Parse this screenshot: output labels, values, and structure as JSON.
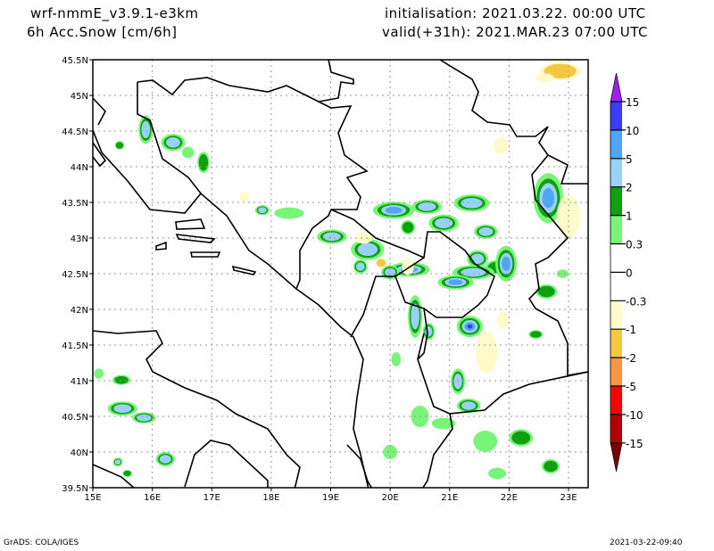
{
  "header": {
    "model": "wrf-nmmE_v3.9.1-e3km",
    "field": "6h Acc.Snow [cm/6h]",
    "init": "initialisation: 2021.03.22.  00:00 UTC",
    "valid": "valid(+31h): 2021.MAR.23 07:00 UTC"
  },
  "footer": {
    "credit": "GrADS: COLA/IGES",
    "timestamp": "2021-03-22-09:40"
  },
  "map": {
    "lon_range": [
      15,
      23.33
    ],
    "lat_range": [
      39.5,
      45.5
    ],
    "lat_ticks": [
      {
        "v": 45.5,
        "label": "45.5N"
      },
      {
        "v": 45,
        "label": "45N"
      },
      {
        "v": 44.5,
        "label": "44.5N"
      },
      {
        "v": 44,
        "label": "44N"
      },
      {
        "v": 43.5,
        "label": "43.5N"
      },
      {
        "v": 43,
        "label": "43N"
      },
      {
        "v": 42.5,
        "label": "42.5N"
      },
      {
        "v": 42,
        "label": "42N"
      },
      {
        "v": 41.5,
        "label": "41.5N"
      },
      {
        "v": 41,
        "label": "41N"
      },
      {
        "v": 40.5,
        "label": "40.5N"
      },
      {
        "v": 40,
        "label": "40N"
      },
      {
        "v": 39.5,
        "label": "39.5N"
      }
    ],
    "lon_ticks": [
      {
        "v": 15,
        "label": "15E"
      },
      {
        "v": 16,
        "label": "16E"
      },
      {
        "v": 17,
        "label": "17E"
      },
      {
        "v": 18,
        "label": "18E"
      },
      {
        "v": 19,
        "label": "19E"
      },
      {
        "v": 20,
        "label": "20E"
      },
      {
        "v": 21,
        "label": "21E"
      },
      {
        "v": 22,
        "label": "22E"
      },
      {
        "v": 23,
        "label": "23E"
      }
    ],
    "snow_cells": [
      {
        "lon": 15.89,
        "lat": 44.52,
        "v": 3,
        "dlon": 0.12,
        "dlat": 0.2
      },
      {
        "lon": 15.45,
        "lat": 44.3,
        "v": 1,
        "dlon": 0.08,
        "dlat": 0.06
      },
      {
        "lon": 16.35,
        "lat": 44.34,
        "v": 3,
        "dlon": 0.2,
        "dlat": 0.12
      },
      {
        "lon": 16.86,
        "lat": 44.06,
        "v": 1.5,
        "dlon": 0.1,
        "dlat": 0.15
      },
      {
        "lon": 16.6,
        "lat": 44.2,
        "v": 0.5,
        "dlon": 0.1,
        "dlat": 0.08
      },
      {
        "lon": 17.85,
        "lat": 43.39,
        "v": 3,
        "dlon": 0.12,
        "dlat": 0.07
      },
      {
        "lon": 18.3,
        "lat": 43.35,
        "v": 0.5,
        "dlon": 0.25,
        "dlat": 0.08
      },
      {
        "lon": 19.02,
        "lat": 43.02,
        "v": 3,
        "dlon": 0.25,
        "dlat": 0.1
      },
      {
        "lon": 19.62,
        "lat": 42.84,
        "v": 4,
        "dlon": 0.28,
        "dlat": 0.15
      },
      {
        "lon": 19.5,
        "lat": 42.6,
        "v": 3,
        "dlon": 0.12,
        "dlat": 0.1
      },
      {
        "lon": 20.06,
        "lat": 43.39,
        "v": 6,
        "dlon": 0.35,
        "dlat": 0.12
      },
      {
        "lon": 20.3,
        "lat": 43.15,
        "v": 1.5,
        "dlon": 0.12,
        "dlat": 0.1
      },
      {
        "lon": 20.62,
        "lat": 43.44,
        "v": 4,
        "dlon": 0.25,
        "dlat": 0.1
      },
      {
        "lon": 21.37,
        "lat": 43.49,
        "v": 4,
        "dlon": 0.3,
        "dlat": 0.12
      },
      {
        "lon": 20.9,
        "lat": 43.21,
        "v": 4,
        "dlon": 0.25,
        "dlat": 0.12
      },
      {
        "lon": 21.61,
        "lat": 43.09,
        "v": 3,
        "dlon": 0.2,
        "dlat": 0.1
      },
      {
        "lon": 21.47,
        "lat": 42.71,
        "v": 3,
        "dlon": 0.18,
        "dlat": 0.12
      },
      {
        "lon": 21.8,
        "lat": 42.59,
        "v": 1.5,
        "dlon": 0.2,
        "dlat": 0.1
      },
      {
        "lon": 21.95,
        "lat": 42.64,
        "v": 6,
        "dlon": 0.18,
        "dlat": 0.25
      },
      {
        "lon": 21.4,
        "lat": 42.52,
        "v": 4,
        "dlon": 0.35,
        "dlat": 0.1
      },
      {
        "lon": 20.32,
        "lat": 42.56,
        "v": 6,
        "dlon": 0.35,
        "dlat": 0.1
      },
      {
        "lon": 20.0,
        "lat": 42.52,
        "v": 3,
        "dlon": 0.15,
        "dlat": 0.1
      },
      {
        "lon": 20.42,
        "lat": 41.9,
        "v": 4,
        "dlon": 0.12,
        "dlat": 0.3
      },
      {
        "lon": 20.65,
        "lat": 41.69,
        "v": 3,
        "dlon": 0.1,
        "dlat": 0.12
      },
      {
        "lon": 21.1,
        "lat": 42.38,
        "v": 6,
        "dlon": 0.3,
        "dlat": 0.1
      },
      {
        "lon": 21.34,
        "lat": 41.76,
        "v": 12,
        "dlon": 0.22,
        "dlat": 0.15
      },
      {
        "lon": 22.66,
        "lat": 43.56,
        "v": 6,
        "dlon": 0.25,
        "dlat": 0.35
      },
      {
        "lon": 22.63,
        "lat": 42.25,
        "v": 1.5,
        "dlon": 0.18,
        "dlat": 0.1
      },
      {
        "lon": 22.45,
        "lat": 41.65,
        "v": 1.5,
        "dlon": 0.12,
        "dlat": 0.06
      },
      {
        "lon": 21.14,
        "lat": 40.99,
        "v": 4,
        "dlon": 0.12,
        "dlat": 0.18
      },
      {
        "lon": 21.32,
        "lat": 40.65,
        "v": 4,
        "dlon": 0.2,
        "dlat": 0.1
      },
      {
        "lon": 15.48,
        "lat": 41.01,
        "v": 1.5,
        "dlon": 0.15,
        "dlat": 0.07
      },
      {
        "lon": 15.5,
        "lat": 40.61,
        "v": 3,
        "dlon": 0.25,
        "dlat": 0.1
      },
      {
        "lon": 15.86,
        "lat": 40.48,
        "v": 3,
        "dlon": 0.2,
        "dlat": 0.08
      },
      {
        "lon": 16.22,
        "lat": 39.9,
        "v": 3,
        "dlon": 0.16,
        "dlat": 0.1
      },
      {
        "lon": 15.42,
        "lat": 39.86,
        "v": 3,
        "dlon": 0.08,
        "dlat": 0.06
      },
      {
        "lon": 15.58,
        "lat": 39.7,
        "v": 1.5,
        "dlon": 0.08,
        "dlat": 0.05
      },
      {
        "lon": 15.1,
        "lat": 41.1,
        "v": 0.5,
        "dlon": 0.08,
        "dlat": 0.07
      },
      {
        "lon": 20.1,
        "lat": 41.3,
        "v": 0.5,
        "dlon": 0.08,
        "dlat": 0.1
      },
      {
        "lon": 20.5,
        "lat": 40.5,
        "v": 0.5,
        "dlon": 0.15,
        "dlat": 0.15
      },
      {
        "lon": 20.9,
        "lat": 40.4,
        "v": 0.8,
        "dlon": 0.2,
        "dlat": 0.08
      },
      {
        "lon": 21.6,
        "lat": 40.15,
        "v": 0.8,
        "dlon": 0.2,
        "dlat": 0.15
      },
      {
        "lon": 22.2,
        "lat": 40.2,
        "v": 1.5,
        "dlon": 0.2,
        "dlat": 0.12
      },
      {
        "lon": 22.7,
        "lat": 39.8,
        "v": 1.5,
        "dlon": 0.15,
        "dlat": 0.1
      },
      {
        "lon": 21.8,
        "lat": 39.7,
        "v": 0.6,
        "dlon": 0.15,
        "dlat": 0.08
      },
      {
        "lon": 20.0,
        "lat": 40.0,
        "v": 0.6,
        "dlon": 0.12,
        "dlat": 0.1
      },
      {
        "lon": 22.9,
        "lat": 42.5,
        "v": 0.6,
        "dlon": 0.1,
        "dlat": 0.06
      },
      {
        "lon": 22.86,
        "lat": 45.34,
        "v": -1.5,
        "dlon": 0.35,
        "dlat": 0.13
      },
      {
        "lon": 22.6,
        "lat": 45.25,
        "v": -0.5,
        "dlon": 0.15,
        "dlat": 0.06
      },
      {
        "lon": 21.86,
        "lat": 44.3,
        "v": -0.5,
        "dlon": 0.12,
        "dlat": 0.12
      },
      {
        "lon": 17.55,
        "lat": 43.58,
        "v": -0.5,
        "dlon": 0.08,
        "dlat": 0.07
      },
      {
        "lon": 19.85,
        "lat": 42.65,
        "v": -1.5,
        "dlon": 0.1,
        "dlat": 0.07
      },
      {
        "lon": 19.55,
        "lat": 43.0,
        "v": -0.5,
        "dlon": 0.15,
        "dlat": 0.08
      },
      {
        "lon": 20.3,
        "lat": 42.6,
        "v": -0.5,
        "dlon": 0.1,
        "dlat": 0.12
      },
      {
        "lon": 21.62,
        "lat": 41.4,
        "v": -0.5,
        "dlon": 0.18,
        "dlat": 0.3
      },
      {
        "lon": 21.9,
        "lat": 41.85,
        "v": -0.5,
        "dlon": 0.1,
        "dlat": 0.12
      },
      {
        "lon": 23.0,
        "lat": 43.3,
        "v": -0.5,
        "dlon": 0.2,
        "dlat": 0.3
      }
    ]
  },
  "colorbar": {
    "top_arrow_color": "#a020f0",
    "bottom_arrow_color": "#780000",
    "segments": [
      {
        "from": 15,
        "to": 10,
        "color": "#3c3cff"
      },
      {
        "from": 10,
        "to": 5,
        "color": "#50a5f5"
      },
      {
        "from": 5,
        "to": 2,
        "color": "#96d2fa"
      },
      {
        "from": 2,
        "to": 1,
        "color": "#0fa00f"
      },
      {
        "from": 1,
        "to": 0.3,
        "color": "#78f578"
      },
      {
        "from": 0.3,
        "to": 0,
        "color": "#ffffff"
      },
      {
        "from": 0,
        "to": -0.3,
        "color": "#ffffff"
      },
      {
        "from": -0.3,
        "to": -1,
        "color": "#fffac8"
      },
      {
        "from": -1,
        "to": -2,
        "color": "#f5c841"
      },
      {
        "from": -2,
        "to": -5,
        "color": "#fa9641"
      },
      {
        "from": -5,
        "to": -10,
        "color": "#ff0000"
      },
      {
        "from": -10,
        "to": -15,
        "color": "#b40000"
      }
    ],
    "labels": [
      "15",
      "10",
      "5",
      "2",
      "1",
      "0.3",
      "0",
      "-0.3",
      "-1",
      "-2",
      "-5",
      "-10",
      "-15"
    ]
  }
}
